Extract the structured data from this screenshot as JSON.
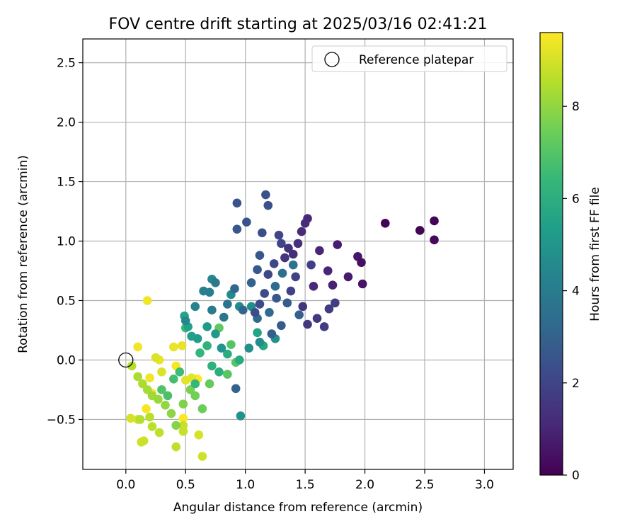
{
  "chart_data": {
    "type": "scatter",
    "title": "FOV centre drift starting at 2025/03/16 02:41:21",
    "xlabel": "Angular distance from reference (arcmin)",
    "ylabel": "Rotation from reference (arcmin)",
    "xlim": [
      -0.36,
      3.24
    ],
    "ylim": [
      -0.92,
      2.7
    ],
    "xticks": [
      0.0,
      0.5,
      1.0,
      1.5,
      2.0,
      2.5,
      3.0
    ],
    "xtick_labels": [
      "0.0",
      "0.5",
      "1.0",
      "1.5",
      "2.0",
      "2.5",
      "3.0"
    ],
    "yticks": [
      -0.5,
      0.0,
      0.5,
      1.0,
      1.5,
      2.0,
      2.5
    ],
    "ytick_labels": [
      "−0.5",
      "0.0",
      "0.5",
      "1.0",
      "1.5",
      "2.0",
      "2.5"
    ],
    "grid": true,
    "legend": {
      "position": "top-right",
      "entries": [
        {
          "label": "Reference platepar",
          "marker": "open-circle"
        }
      ]
    },
    "reference_point": {
      "x": 0.0,
      "y": 0.0
    },
    "colorbar": {
      "label": "Hours from first FF file",
      "colormap": "viridis",
      "range": [
        0,
        9.6
      ],
      "ticks": [
        0,
        2,
        4,
        6,
        8
      ],
      "tick_labels": [
        "0",
        "2",
        "4",
        "6",
        "8"
      ],
      "colors": [
        "#440154",
        "#482878",
        "#3e4989",
        "#31688e",
        "#26828e",
        "#1f9e89",
        "#35b779",
        "#6ece58",
        "#b5de2b",
        "#fde725"
      ]
    },
    "points": [
      [
        2.17,
        1.15,
        0.1
      ],
      [
        2.46,
        1.09,
        0.1
      ],
      [
        2.58,
        1.17,
        0.1
      ],
      [
        2.58,
        1.01,
        0.2
      ],
      [
        1.97,
        0.82,
        0.4
      ],
      [
        1.98,
        0.64,
        0.5
      ],
      [
        1.94,
        0.87,
        0.6
      ],
      [
        1.86,
        0.7,
        0.7
      ],
      [
        1.77,
        0.97,
        0.8
      ],
      [
        1.73,
        0.63,
        0.9
      ],
      [
        1.69,
        0.75,
        1.0
      ],
      [
        1.62,
        0.92,
        1.0
      ],
      [
        1.57,
        0.62,
        1.1
      ],
      [
        1.52,
        1.19,
        1.1
      ],
      [
        1.5,
        1.15,
        1.2
      ],
      [
        1.47,
        1.08,
        1.2
      ],
      [
        1.44,
        0.98,
        1.3
      ],
      [
        1.4,
        0.89,
        1.3
      ],
      [
        1.36,
        0.94,
        1.4
      ],
      [
        1.33,
        0.86,
        1.5
      ],
      [
        1.48,
        0.45,
        1.5
      ],
      [
        1.52,
        0.3,
        1.6
      ],
      [
        1.6,
        0.35,
        1.6
      ],
      [
        1.66,
        0.28,
        1.7
      ],
      [
        1.7,
        0.43,
        1.7
      ],
      [
        1.75,
        0.48,
        1.8
      ],
      [
        1.55,
        0.8,
        1.8
      ],
      [
        1.42,
        0.7,
        1.9
      ],
      [
        1.38,
        0.58,
        1.9
      ],
      [
        1.3,
        0.98,
        2.0
      ],
      [
        1.28,
        1.05,
        2.0
      ],
      [
        1.24,
        0.81,
        2.1
      ],
      [
        1.19,
        0.72,
        2.1
      ],
      [
        1.16,
        0.56,
        2.2
      ],
      [
        1.12,
        0.47,
        2.2
      ],
      [
        1.08,
        0.4,
        2.3
      ],
      [
        1.14,
        1.07,
        2.3
      ],
      [
        1.17,
        1.39,
        2.4
      ],
      [
        1.19,
        1.3,
        2.4
      ],
      [
        1.01,
        1.16,
        2.5
      ],
      [
        0.93,
        1.32,
        2.5
      ],
      [
        0.93,
        1.1,
        2.6
      ],
      [
        1.12,
        0.88,
        2.6
      ],
      [
        1.1,
        0.76,
        2.7
      ],
      [
        1.26,
        0.52,
        2.7
      ],
      [
        1.35,
        0.48,
        2.8
      ],
      [
        1.3,
        0.29,
        2.8
      ],
      [
        1.22,
        0.22,
        2.9
      ],
      [
        1.45,
        0.38,
        2.9
      ],
      [
        1.05,
        0.65,
        3.0
      ],
      [
        0.98,
        0.42,
        3.1
      ],
      [
        0.91,
        0.6,
        3.2
      ],
      [
        1.1,
        0.35,
        3.2
      ],
      [
        1.2,
        0.4,
        3.3
      ],
      [
        1.25,
        0.62,
        3.4
      ],
      [
        1.31,
        0.73,
        3.5
      ],
      [
        1.4,
        0.8,
        3.6
      ],
      [
        0.92,
        -0.24,
        3.0
      ],
      [
        0.85,
        0.47,
        3.7
      ],
      [
        0.82,
        0.36,
        3.8
      ],
      [
        0.75,
        0.65,
        3.9
      ],
      [
        0.72,
        0.42,
        4.0
      ],
      [
        0.7,
        0.57,
        4.1
      ],
      [
        0.65,
        0.58,
        4.2
      ],
      [
        0.58,
        0.45,
        4.3
      ],
      [
        0.5,
        0.33,
        4.4
      ],
      [
        0.72,
        0.68,
        4.4
      ],
      [
        0.88,
        0.55,
        4.5
      ],
      [
        0.95,
        0.45,
        4.6
      ],
      [
        1.05,
        0.45,
        4.7
      ],
      [
        1.12,
        0.15,
        4.7
      ],
      [
        1.25,
        0.18,
        4.8
      ],
      [
        1.03,
        0.1,
        4.8
      ],
      [
        0.96,
        -0.47,
        4.9
      ],
      [
        0.8,
        0.1,
        5.0
      ],
      [
        0.75,
        0.22,
        5.1
      ],
      [
        0.68,
        0.28,
        5.2
      ],
      [
        0.6,
        0.18,
        5.3
      ],
      [
        0.55,
        0.2,
        5.4
      ],
      [
        0.52,
        0.28,
        5.5
      ],
      [
        0.49,
        0.37,
        5.6
      ],
      [
        1.1,
        0.23,
        5.6
      ],
      [
        1.15,
        0.12,
        5.7
      ],
      [
        0.95,
        0.0,
        5.8
      ],
      [
        0.85,
        0.05,
        5.9
      ],
      [
        0.78,
        -0.1,
        6.0
      ],
      [
        0.72,
        -0.05,
        6.1
      ],
      [
        0.68,
        0.12,
        6.2
      ],
      [
        0.62,
        0.06,
        6.3
      ],
      [
        0.58,
        -0.2,
        6.4
      ],
      [
        0.5,
        0.27,
        6.5
      ],
      [
        0.45,
        -0.1,
        6.6
      ],
      [
        0.4,
        -0.16,
        6.7
      ],
      [
        0.35,
        -0.3,
        6.8
      ],
      [
        0.3,
        -0.25,
        6.9
      ],
      [
        0.88,
        0.13,
        7.0
      ],
      [
        0.92,
        -0.02,
        7.0
      ],
      [
        0.85,
        -0.12,
        7.1
      ],
      [
        0.78,
        0.27,
        7.2
      ],
      [
        0.7,
        -0.2,
        7.3
      ],
      [
        0.64,
        -0.41,
        7.4
      ],
      [
        0.58,
        -0.3,
        7.5
      ],
      [
        0.54,
        -0.25,
        7.6
      ],
      [
        0.48,
        -0.37,
        7.7
      ],
      [
        0.42,
        -0.55,
        7.8
      ],
      [
        0.38,
        -0.45,
        7.9
      ],
      [
        0.33,
        -0.38,
        8.0
      ],
      [
        0.27,
        -0.33,
        8.1
      ],
      [
        0.22,
        -0.3,
        8.2
      ],
      [
        0.18,
        -0.25,
        8.3
      ],
      [
        0.14,
        -0.2,
        8.4
      ],
      [
        0.1,
        -0.14,
        8.4
      ],
      [
        0.05,
        -0.05,
        8.5
      ],
      [
        0.12,
        -0.5,
        8.5
      ],
      [
        0.2,
        -0.48,
        8.6
      ],
      [
        0.22,
        -0.56,
        8.6
      ],
      [
        0.28,
        -0.61,
        8.7
      ],
      [
        0.42,
        -0.73,
        8.7
      ],
      [
        0.48,
        -0.55,
        8.8
      ],
      [
        0.48,
        -0.6,
        8.8
      ],
      [
        0.13,
        -0.69,
        8.9
      ],
      [
        0.15,
        -0.68,
        8.9
      ],
      [
        0.64,
        -0.81,
        8.9
      ],
      [
        0.61,
        -0.63,
        9.0
      ],
      [
        0.04,
        -0.49,
        9.0
      ],
      [
        0.1,
        -0.5,
        9.0
      ],
      [
        0.3,
        -0.1,
        9.1
      ],
      [
        0.25,
        0.02,
        9.1
      ],
      [
        0.35,
        -0.3,
        9.2
      ],
      [
        0.5,
        -0.17,
        9.2
      ],
      [
        0.55,
        -0.15,
        9.2
      ],
      [
        0.4,
        0.11,
        9.3
      ],
      [
        0.47,
        0.12,
        9.3
      ],
      [
        0.28,
        0.0,
        9.3
      ],
      [
        0.1,
        0.11,
        9.4
      ],
      [
        0.18,
        0.5,
        9.4
      ],
      [
        0.2,
        -0.15,
        9.4
      ],
      [
        0.17,
        -0.41,
        9.5
      ],
      [
        0.42,
        -0.05,
        9.5
      ],
      [
        0.22,
        -0.28,
        9.5
      ],
      [
        0.48,
        -0.49,
        9.6
      ],
      [
        0.6,
        -0.16,
        9.6
      ]
    ]
  }
}
